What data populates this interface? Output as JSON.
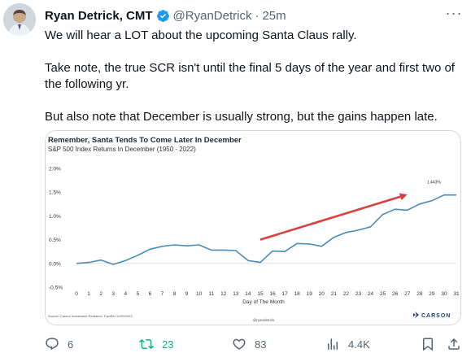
{
  "tweet": {
    "author_name": "Ryan Detrick, CMT",
    "handle": "@RyanDetrick",
    "separator": "·",
    "time": "25m",
    "more_label": "···",
    "paragraphs": [
      "We will hear a LOT about the upcoming Santa Claus rally.",
      "Take note, the true SCR isn't until the final 5 days of the year and first two of the following yr.",
      "But also note that December is usually strong, but the gains happen late."
    ]
  },
  "chart_data": {
    "type": "line",
    "title": "Remember, Santa Tends To Come Later In December",
    "subtitle": "S&P 500 Index Returns In December (1950 - 2022)",
    "xlabel": "Day of The Month",
    "ylabel": "",
    "x": [
      0,
      1,
      2,
      3,
      4,
      5,
      6,
      7,
      8,
      9,
      10,
      11,
      12,
      13,
      14,
      15,
      16,
      17,
      18,
      19,
      20,
      21,
      22,
      23,
      24,
      25,
      26,
      27,
      28,
      29,
      30,
      31
    ],
    "series": [
      {
        "values": [
          0.0,
          0.02,
          0.07,
          -0.02,
          0.06,
          0.17,
          0.3,
          0.36,
          0.39,
          0.37,
          0.39,
          0.28,
          0.28,
          0.27,
          0.06,
          0.02,
          0.26,
          0.25,
          0.42,
          0.41,
          0.36,
          0.55,
          0.65,
          0.7,
          0.77,
          1.03,
          1.14,
          1.12,
          1.25,
          1.32,
          1.44,
          1.44
        ]
      }
    ],
    "ylim": [
      -0.5,
      2.0
    ],
    "yticks": [
      "2.0%",
      "1.5%",
      "1.0%",
      "0.5%",
      "0.0%",
      "-0.5%"
    ],
    "ytick_values": [
      2.0,
      1.5,
      1.0,
      0.5,
      0.0,
      -0.5
    ],
    "annotation": "1.443%",
    "source": "Source: Carson Investment Research, FactSet 11/20/2023",
    "watermark": "@ryandetrick",
    "brand": "CARSON",
    "line_color": "#4a8cb8",
    "arrow_color": "#d94040"
  },
  "actions": {
    "replies": "6",
    "reposts": "23",
    "likes": "83",
    "views": "4.4K"
  },
  "colors": {
    "text": "#0f1419",
    "muted": "#536471",
    "verified": "#1d9bf0",
    "repost": "#00ba7c"
  }
}
